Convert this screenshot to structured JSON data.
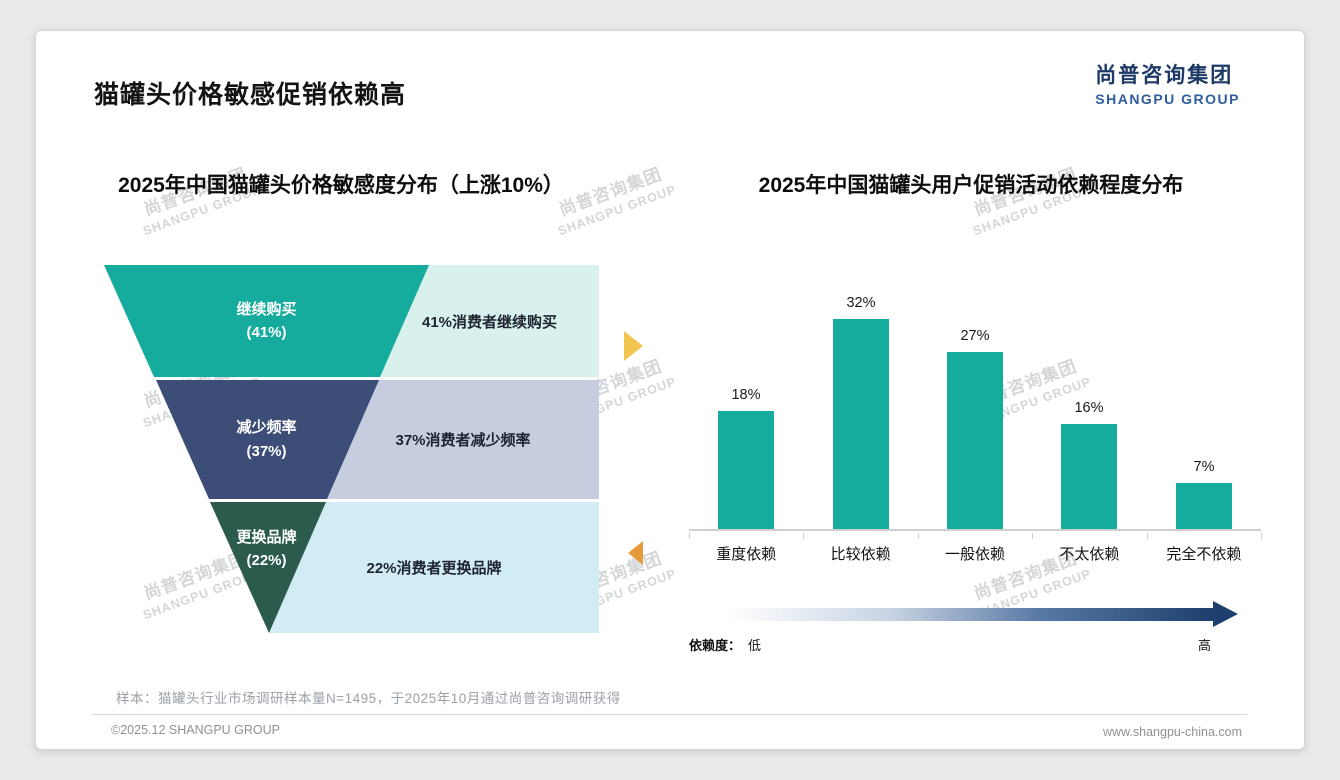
{
  "header": {
    "title": "猫罐头价格敏感促销依赖高",
    "logo_cn": "尚普咨询集团",
    "logo_en": "SHANGPU GROUP"
  },
  "watermark": {
    "line1": "尚普咨询集团",
    "line2": "SHANGPU GROUP"
  },
  "chart_data": [
    {
      "type": "funnel",
      "title": "2025年中国猫罐头价格敏感度分布（上涨10%）",
      "segments": [
        {
          "label": "继续购买",
          "pct_label": "(41%)",
          "value": 41,
          "desc": "41%消费者继续购买",
          "color": "#15ab9d",
          "desc_bg": "#d9f1ec"
        },
        {
          "label": "减少频率",
          "pct_label": "(37%)",
          "value": 37,
          "desc": "37%消费者减少频率",
          "color": "#3c4e77",
          "desc_bg": "#c5cddf"
        },
        {
          "label": "更换品牌",
          "pct_label": "(22%)",
          "value": 22,
          "desc": "22%消费者更换品牌",
          "color": "#2b5b4c",
          "desc_bg": "#d2ecf3"
        }
      ]
    },
    {
      "type": "bar",
      "title": "2025年中国猫罐头用户促销活动依赖程度分布",
      "categories": [
        "重度依赖",
        "比较依赖",
        "一般依赖",
        "不太依赖",
        "完全不依赖"
      ],
      "values": [
        18,
        32,
        27,
        16,
        7
      ],
      "value_labels": [
        "18%",
        "32%",
        "27%",
        "16%",
        "7%"
      ],
      "bar_color": "#15ab9d",
      "ylim": [
        0,
        35
      ],
      "grid": false,
      "dependency_axis": {
        "label": "依赖度：",
        "low": "低",
        "high": "高",
        "gradient_from": "#ffffff",
        "gradient_to": "#1e3f6d"
      }
    }
  ],
  "footer": {
    "sample_note": "样本：猫罐头行业市场调研样本量N=1495，于2025年10月通过尚普咨询调研获得",
    "copyright": "©2025.12 SHANGPU GROUP",
    "website": "www.shangpu-china.com"
  }
}
